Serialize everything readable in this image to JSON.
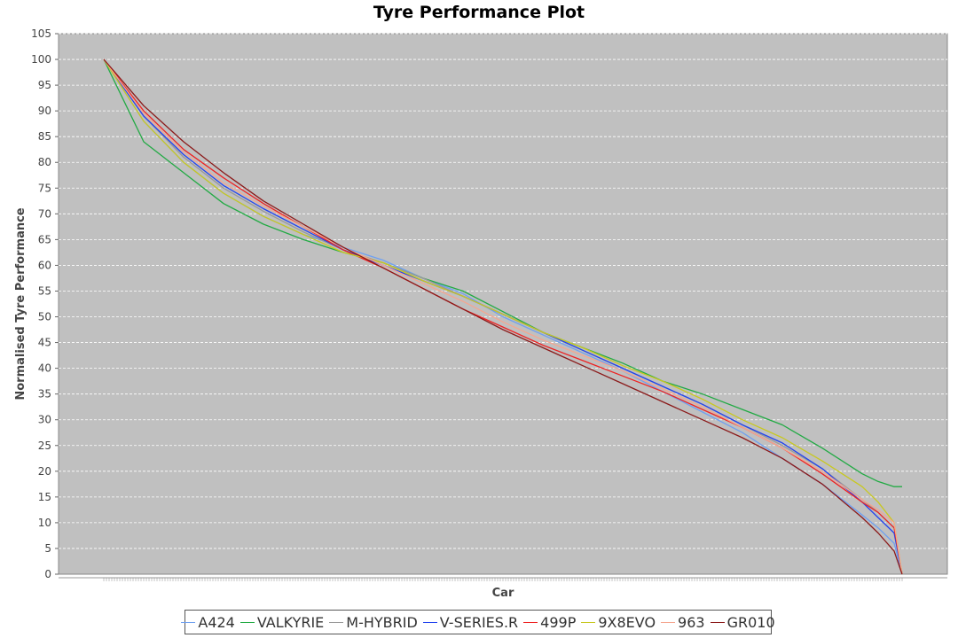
{
  "chart_data": {
    "type": "line",
    "title": "Tyre Performance Plot",
    "xlabel": "Car",
    "ylabel": "Normalised Tyre Performance",
    "ylim": [
      0,
      105
    ],
    "yticks": [
      0,
      5,
      10,
      15,
      20,
      25,
      30,
      35,
      40,
      45,
      50,
      55,
      60,
      65,
      70,
      75,
      80,
      85,
      90,
      95,
      100,
      105
    ],
    "x": [
      0,
      0.05,
      0.1,
      0.15,
      0.2,
      0.25,
      0.3,
      0.35,
      0.4,
      0.45,
      0.5,
      0.55,
      0.6,
      0.65,
      0.7,
      0.75,
      0.8,
      0.85,
      0.9,
      0.95,
      0.97,
      0.99,
      1.0
    ],
    "grid": true,
    "legend_position": "bottom",
    "series": [
      {
        "name": "A424",
        "color": "#6fa0f0",
        "values": [
          100,
          88,
          80,
          74,
          69.5,
          66,
          63.5,
          61,
          57.5,
          54.5,
          50,
          46.5,
          43,
          39.5,
          35.5,
          31.5,
          27.5,
          22.5,
          17.5,
          11.5,
          9,
          6,
          0
        ]
      },
      {
        "name": "VALKYRIE",
        "color": "#22aa44",
        "values": [
          100,
          84,
          78,
          72,
          68,
          65,
          62.5,
          60.5,
          57.5,
          55,
          51,
          47,
          44,
          41,
          37.5,
          35,
          32,
          29,
          24.5,
          19.5,
          18,
          17,
          17
        ]
      },
      {
        "name": "M-HYBRID",
        "color": "#999999",
        "values": [
          100,
          89,
          81,
          75,
          70.5,
          66.5,
          63,
          60.5,
          57.5,
          54,
          50.5,
          47,
          43.5,
          40,
          36.5,
          33,
          29,
          25,
          20.5,
          14.5,
          12,
          9,
          0
        ]
      },
      {
        "name": "V-SERIES.R",
        "color": "#2244ee",
        "values": [
          100,
          89,
          81.5,
          75.5,
          71,
          67,
          63,
          60,
          57,
          54,
          50.5,
          47,
          43.5,
          40,
          36.5,
          33,
          29,
          25.5,
          20.5,
          14,
          11,
          8,
          0
        ]
      },
      {
        "name": "499P",
        "color": "#ee2222",
        "values": [
          100,
          90,
          82.5,
          77,
          72,
          67.5,
          63,
          59.5,
          55.5,
          51.5,
          48,
          44.5,
          41.5,
          38.5,
          35.5,
          32,
          28.5,
          24.5,
          19.5,
          14,
          12,
          9,
          0
        ]
      },
      {
        "name": "9X8EVO",
        "color": "#c8c820",
        "values": [
          100,
          88,
          80,
          74,
          69.5,
          66,
          62.5,
          60.5,
          57,
          54,
          50.5,
          47,
          44,
          40.5,
          37.5,
          34,
          30,
          26.5,
          22,
          17,
          14,
          10,
          0
        ]
      },
      {
        "name": "963",
        "color": "#f5a690",
        "values": [
          100,
          89.5,
          82,
          76,
          71.5,
          67.5,
          63.5,
          60,
          56.5,
          53,
          49,
          45.5,
          42.5,
          39.5,
          36,
          32.5,
          28.5,
          24.5,
          20,
          14.5,
          12.5,
          10,
          0
        ]
      },
      {
        "name": "GR010",
        "color": "#8b1a1a",
        "values": [
          100,
          91,
          84,
          78,
          72.5,
          68,
          63.5,
          59.5,
          55.5,
          51.5,
          47.5,
          44,
          40.5,
          37,
          33.5,
          30,
          26.5,
          22.5,
          17.5,
          11,
          8,
          4.5,
          0
        ]
      }
    ]
  }
}
